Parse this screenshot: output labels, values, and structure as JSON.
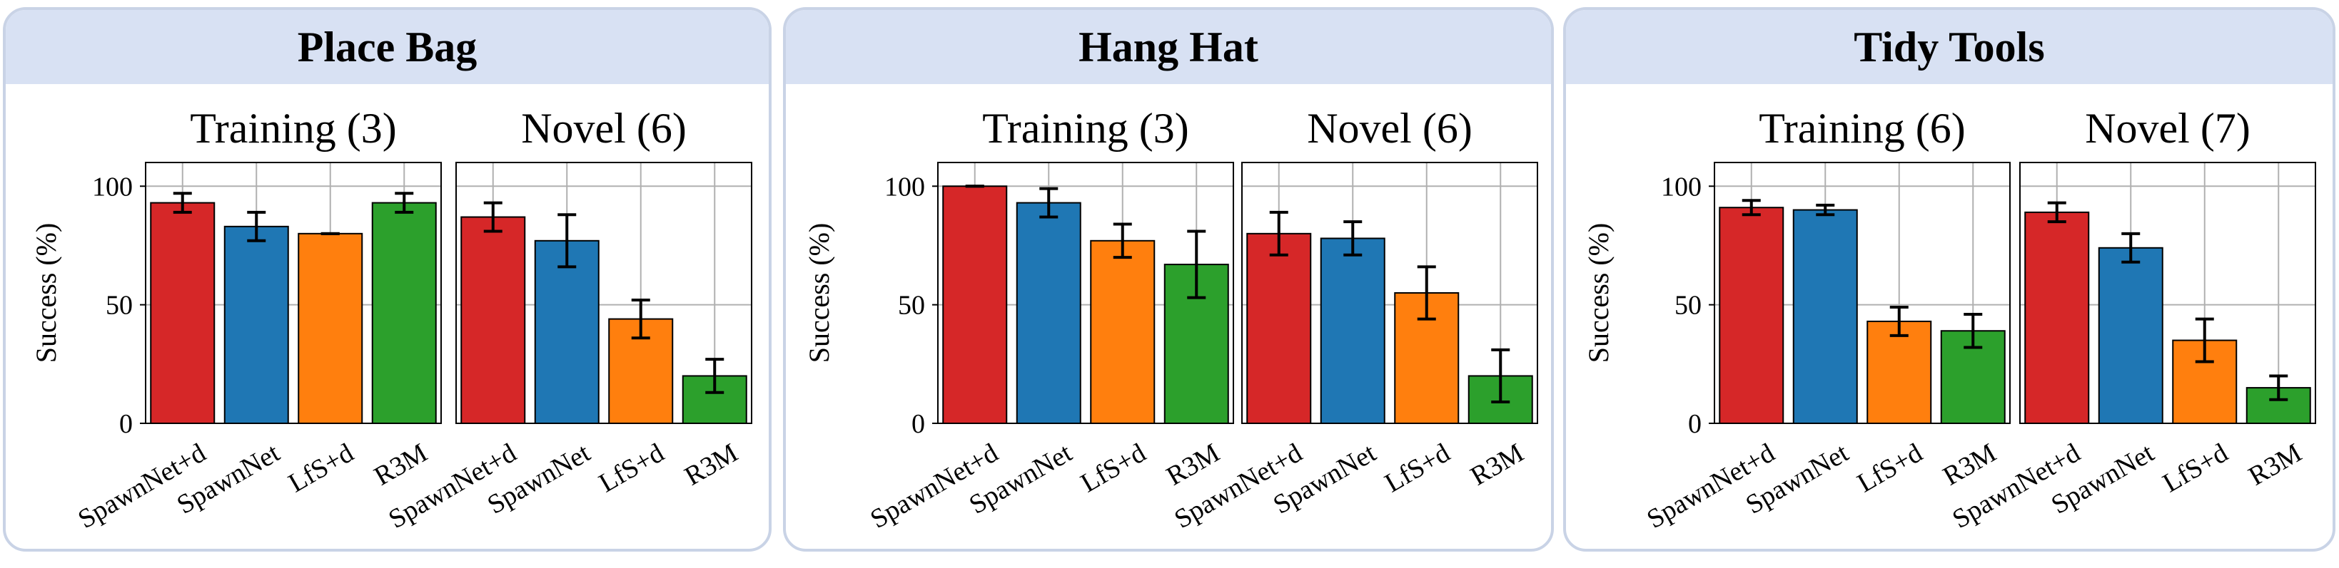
{
  "y_axis_label": "Success (%)",
  "y_ticks": [
    0,
    50,
    100
  ],
  "colors": {
    "panel_header": "#d8e1f3",
    "panel_border": "#c9d3e6",
    "SpawnNet+d": "#d62728",
    "SpawnNet": "#1f77b4",
    "LfS+d": "#ff7f0e",
    "R3M": "#2ca02c"
  },
  "chart_data": [
    {
      "type": "bar",
      "title": "Place Bag",
      "ylabel": "Success (%)",
      "ylim": [
        0,
        100
      ],
      "grid": true,
      "subplots": [
        {
          "subtitle": "Training (3)",
          "categories": [
            "SpawnNet+d",
            "SpawnNet",
            "LfS+d",
            "R3M"
          ],
          "values": [
            93,
            83,
            80,
            93
          ],
          "errors": [
            4,
            6,
            0,
            4
          ]
        },
        {
          "subtitle": "Novel (6)",
          "categories": [
            "SpawnNet+d",
            "SpawnNet",
            "LfS+d",
            "R3M"
          ],
          "values": [
            87,
            77,
            44,
            20
          ],
          "errors": [
            6,
            11,
            8,
            7
          ]
        }
      ]
    },
    {
      "type": "bar",
      "title": "Hang Hat",
      "ylabel": "Success (%)",
      "ylim": [
        0,
        100
      ],
      "grid": true,
      "subplots": [
        {
          "subtitle": "Training (3)",
          "categories": [
            "SpawnNet+d",
            "SpawnNet",
            "LfS+d",
            "R3M"
          ],
          "values": [
            100,
            93,
            77,
            67
          ],
          "errors": [
            0,
            6,
            7,
            14
          ]
        },
        {
          "subtitle": "Novel (6)",
          "categories": [
            "SpawnNet+d",
            "SpawnNet",
            "LfS+d",
            "R3M"
          ],
          "values": [
            80,
            78,
            55,
            20
          ],
          "errors": [
            9,
            7,
            11,
            11
          ]
        }
      ]
    },
    {
      "type": "bar",
      "title": "Tidy Tools",
      "ylabel": "Success (%)",
      "ylim": [
        0,
        100
      ],
      "grid": true,
      "subplots": [
        {
          "subtitle": "Training (6)",
          "categories": [
            "SpawnNet+d",
            "SpawnNet",
            "LfS+d",
            "R3M"
          ],
          "values": [
            91,
            90,
            43,
            39
          ],
          "errors": [
            3,
            2,
            6,
            7
          ]
        },
        {
          "subtitle": "Novel (7)",
          "categories": [
            "SpawnNet+d",
            "SpawnNet",
            "LfS+d",
            "R3M"
          ],
          "values": [
            89,
            74,
            35,
            15
          ],
          "errors": [
            4,
            6,
            9,
            5
          ]
        }
      ]
    }
  ]
}
